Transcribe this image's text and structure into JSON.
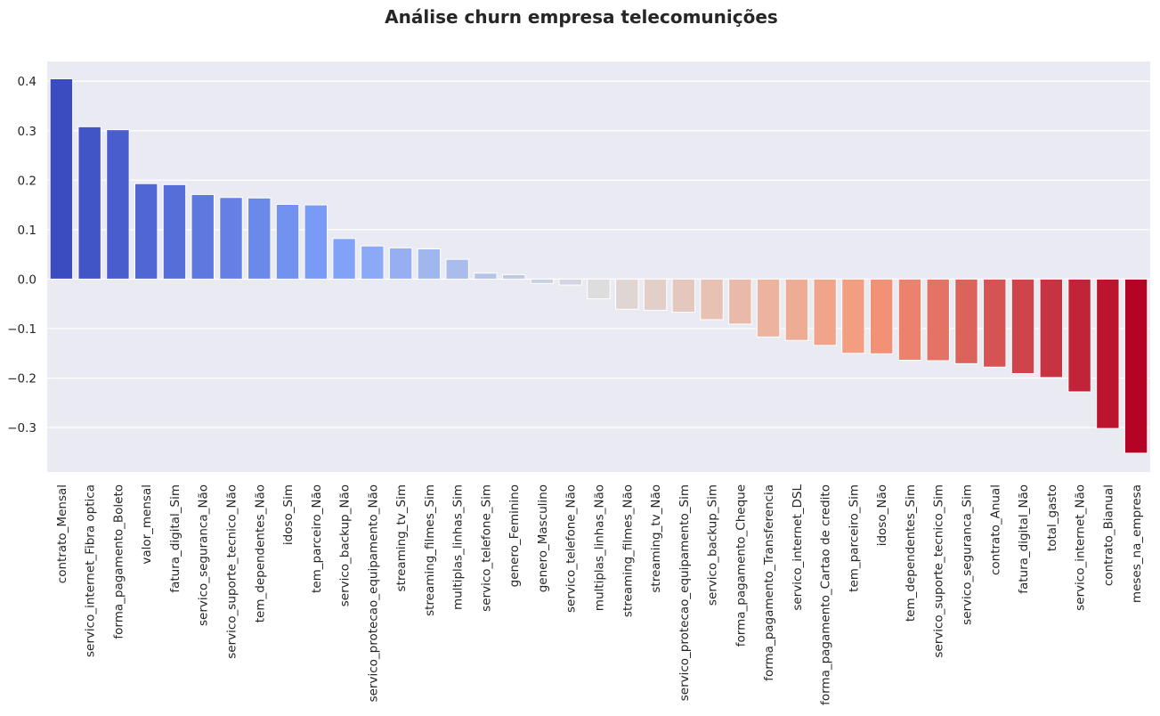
{
  "chart_data": {
    "type": "bar",
    "title": "Análise churn empresa telecomunições",
    "xlabel": "",
    "ylabel": "",
    "ylim": [
      -0.39,
      0.44
    ],
    "yticks": [
      -0.3,
      -0.2,
      -0.1,
      0.0,
      0.1,
      0.2,
      0.3,
      0.4
    ],
    "ytick_labels": [
      "−0.3",
      "−0.2",
      "−0.1",
      "0.0",
      "0.1",
      "0.2",
      "0.3",
      "0.4"
    ],
    "grid": true,
    "legend": "none",
    "colormap": "coolwarm",
    "background_color": "#eaeaf2",
    "categories": [
      "contrato_Mensal",
      "servico_internet_Fibra optica",
      "forma_pagamento_Boleto",
      "valor_mensal",
      "fatura_digital_Sim",
      "servico_seguranca_Não",
      "servico_suporte_tecnico_Não",
      "tem_dependentes_Não",
      "idoso_Sim",
      "tem_parceiro_Não",
      "servico_backup_Não",
      "servico_protecao_equipamento_Não",
      "streaming_tv_Sim",
      "streaming_filmes_Sim",
      "multiplas_linhas_Sim",
      "servico_telefone_Sim",
      "genero_Feminino",
      "genero_Masculino",
      "servico_telefone_Não",
      "multiplas_linhas_Não",
      "streaming_filmes_Não",
      "streaming_tv_Não",
      "servico_protecao_equipamento_Sim",
      "servico_backup_Sim",
      "forma_pagamento_Cheque",
      "forma_pagamento_Transferencia",
      "servico_internet_DSL",
      "forma_pagamento_Cartao de credito",
      "tem_parceiro_Sim",
      "idoso_Não",
      "tem_dependentes_Sim",
      "servico_suporte_tecnico_Sim",
      "servico_seguranca_Sim",
      "contrato_Anual",
      "fatura_digital_Não",
      "total_gasto",
      "servico_internet_Não",
      "contrato_Bianual",
      "meses_na_empresa"
    ],
    "values": [
      0.405,
      0.308,
      0.302,
      0.193,
      0.191,
      0.171,
      0.165,
      0.164,
      0.151,
      0.15,
      0.082,
      0.067,
      0.063,
      0.061,
      0.04,
      0.012,
      0.009,
      -0.009,
      -0.012,
      -0.04,
      -0.061,
      -0.063,
      -0.067,
      -0.082,
      -0.091,
      -0.117,
      -0.124,
      -0.134,
      -0.15,
      -0.151,
      -0.164,
      -0.165,
      -0.171,
      -0.178,
      -0.191,
      -0.199,
      -0.228,
      -0.302,
      -0.352
    ]
  }
}
